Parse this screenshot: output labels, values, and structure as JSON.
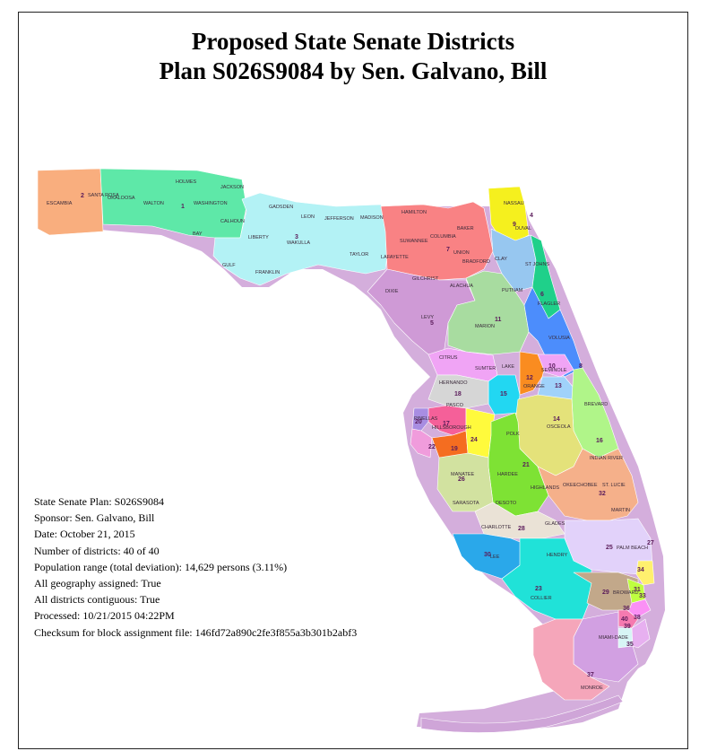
{
  "title": {
    "line1": "Proposed State Senate Districts",
    "line2": "Plan S026S9084 by Sen. Galvano, Bill"
  },
  "plan_info": [
    "State Senate Plan: S026S9084",
    "Sponsor: Sen. Galvano, Bill",
    "Date: October 21, 2015",
    "Number of districts: 40 of 40",
    "Population range (total deviation): 14,629 persons (3.11%)",
    "All geography assigned: True",
    "All districts contiguous: True",
    "Processed: 10/21/2015 04:22PM",
    "Checksum for block assignment file: 146fd72a890c2fe3f855a3b301b2abf3"
  ],
  "counties": {
    "escambia": "ESCAMBIA",
    "santa_rosa": "SANTA ROSA",
    "okaloosa": "OKALOOSA",
    "walton": "WALTON",
    "holmes": "HOLMES",
    "jackson": "JACKSON",
    "washington": "WASHINGTON",
    "bay": "BAY",
    "calhoun": "CALHOUN",
    "gulf": "GULF",
    "liberty": "LIBERTY",
    "gadsden": "GADSDEN",
    "leon": "LEON",
    "wakulla": "WAKULLA",
    "franklin": "FRANKLIN",
    "jefferson": "JEFFERSON",
    "madison": "MADISON",
    "taylor": "TAYLOR",
    "hamilton": "HAMILTON",
    "suwannee": "SUWANNEE",
    "columbia": "COLUMBIA",
    "baker": "BAKER",
    "union": "UNION",
    "bradford": "BRADFORD",
    "lafayette": "LAFAYETTE",
    "gilchrist": "GILCHRIST",
    "alachua": "ALACHUA",
    "dixie": "DIXIE",
    "levy": "LEVY",
    "nassau": "NASSAU",
    "duval": "DUVAL",
    "clay": "CLAY",
    "st_johns": "ST JOHNS",
    "putnam": "PUTNAM",
    "flagler": "FLAGLER",
    "marion": "MARION",
    "volusia": "VOLUSIA",
    "citrus": "CITRUS",
    "sumter": "SUMTER",
    "lake": "LAKE",
    "seminole": "SEMINOLE",
    "orange": "ORANGE",
    "hernando": "HERNANDO",
    "pasco": "PASCO",
    "brevard": "BREVARD",
    "osceola": "OSCEOLA",
    "pinellas": "PINELLAS",
    "hillsborough": "HILLSBOROUGH",
    "polk": "POLK",
    "indian_river": "INDIAN RIVER",
    "manatee": "MANATEE",
    "hardee": "HARDEE",
    "highlands": "HIGHLANDS",
    "okeechobee": "OKEECHOBEE",
    "st_lucie": "ST. LUCIE",
    "sarasota": "SARASOTA",
    "desoto": "DESOTO",
    "martin": "MARTIN",
    "charlotte": "CHARLOTTE",
    "glades": "GLADES",
    "palm_beach": "PALM BEACH",
    "lee": "LEE",
    "hendry": "HENDRY",
    "broward": "BROWARD",
    "collier": "COLLIER",
    "miami_dade": "MIAMI-DADE",
    "monroe": "MONROE"
  },
  "districts": [
    "1",
    "2",
    "3",
    "4",
    "5",
    "6",
    "7",
    "8",
    "9",
    "10",
    "11",
    "12",
    "13",
    "14",
    "15",
    "16",
    "17",
    "18",
    "19",
    "20",
    "21",
    "22",
    "23",
    "24",
    "25",
    "26",
    "27",
    "28",
    "29",
    "30",
    "31",
    "32",
    "33",
    "34",
    "35",
    "36",
    "37",
    "38",
    "39",
    "40"
  ],
  "colors": {
    "d1": "#5ee8a8",
    "d2": "#f9ae7e",
    "d3": "#b3f2f5",
    "d4": "#f5f01e",
    "d5": "#cf9ad6",
    "d6": "#1fd08a",
    "d7": "#f98284",
    "d8": "#4c8dfc",
    "d9": "#97c7f0",
    "d10": "#f0a4f5",
    "d11": "#a8dca0",
    "d12": "#fa8c20",
    "d13": "#a0d2fa",
    "d14": "#e4e27a",
    "d15": "#22d7f2",
    "d16": "#b0f589",
    "d17": "#f56099",
    "d18": "#d6d6d6",
    "d19": "#f56d20",
    "d20": "#a88de2",
    "d21": "#7ee234",
    "d22": "#f09cdc",
    "d23": "#20e2d8",
    "d24": "#fffa3c",
    "d25": "#e2d2fa",
    "d26": "#d2e2a0",
    "d27": "#f5a0a0",
    "d28": "#eae2d6",
    "d29": "#c2a88a",
    "d30": "#2aa8ea",
    "d31": "#bfff40",
    "d32": "#f5b08a",
    "d33": "#fa90f5",
    "d34": "#fff06e",
    "d35": "#f57ab0",
    "d36": "#d7f5f5",
    "d37": "#f5a6ba",
    "d38": "#e7b0f0",
    "d39": "#d2a0e2",
    "d40": "#7ad2d2",
    "coast": "#cfa5d8"
  }
}
